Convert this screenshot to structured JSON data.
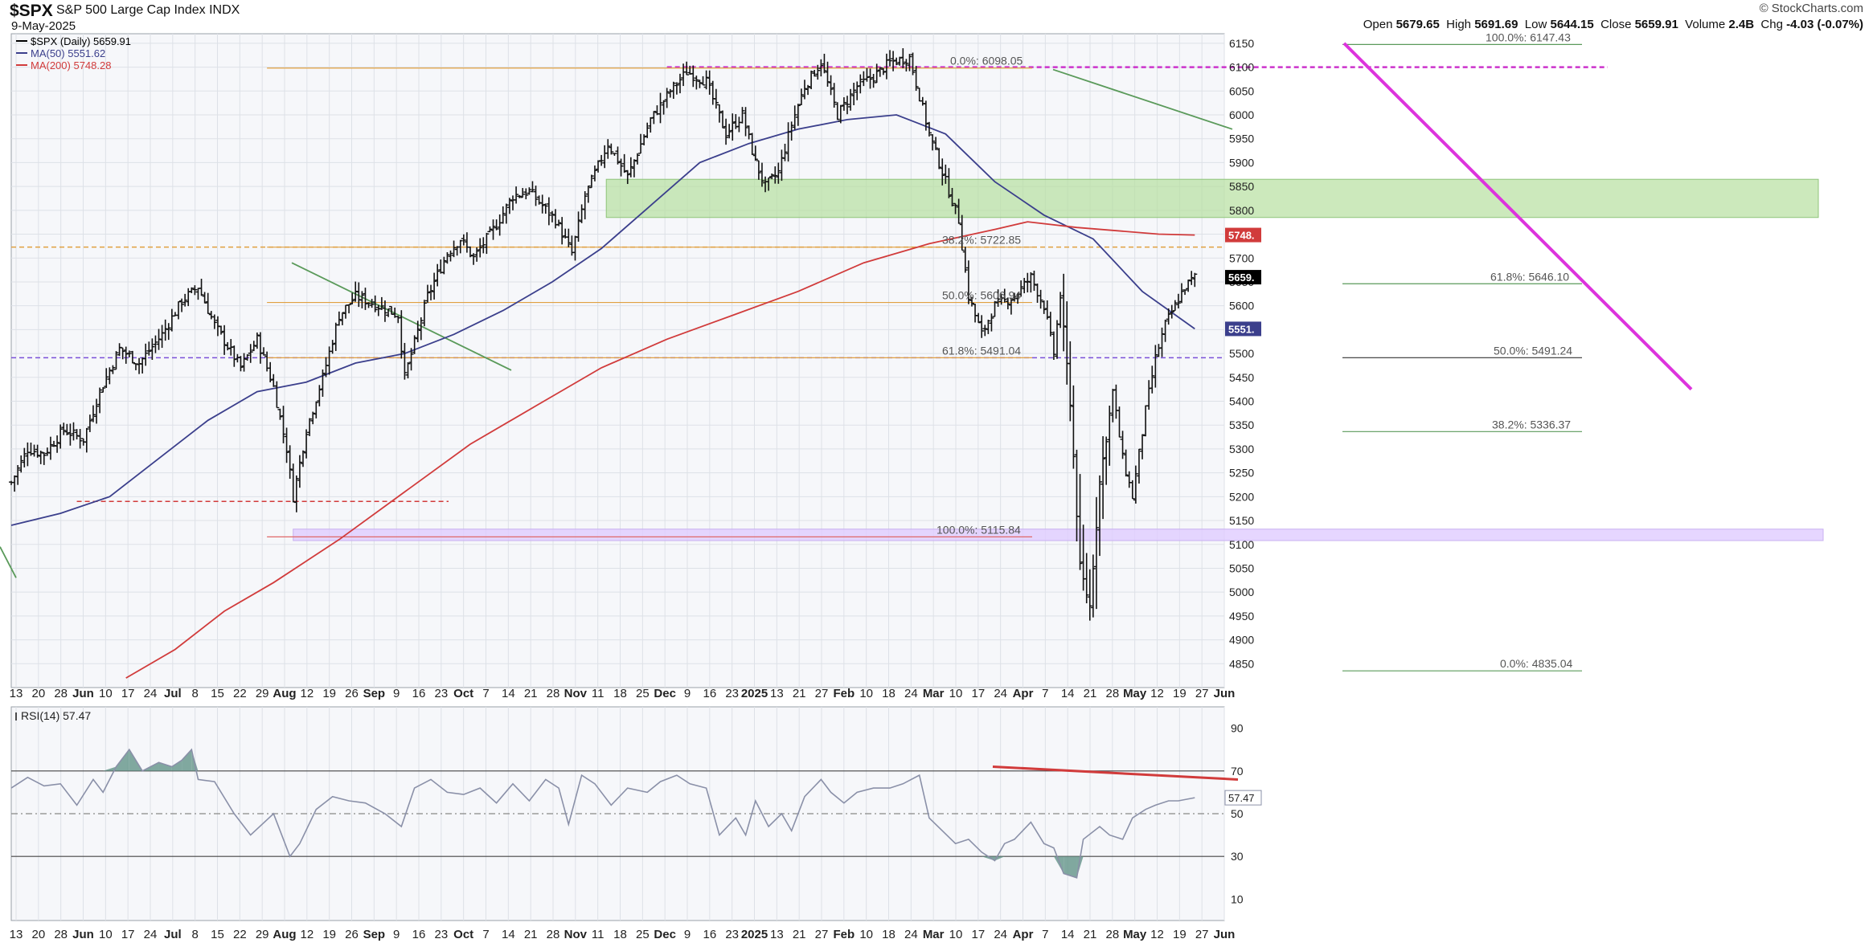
{
  "header": {
    "ticker": "$SPX",
    "name": "S&P 500 Large Cap Index",
    "exchange": "INDX",
    "date": "9-May-2025",
    "brand": "© StockCharts.com",
    "quote": {
      "open_label": "Open",
      "open": "5679.65",
      "high_label": "High",
      "high": "5691.69",
      "low_label": "Low",
      "low": "5644.15",
      "close_label": "Close",
      "close": "5659.91",
      "volume_label": "Volume",
      "volume": "2.4B",
      "chg_label": "Chg",
      "chg": "-4.03 (-0.07%)"
    }
  },
  "legend": [
    {
      "text": "$SPX (Daily) 5659.91",
      "color": "#000000"
    },
    {
      "text": "MA(50) 5551.62",
      "color": "#3b3f8c"
    },
    {
      "text": "MA(200) 5748.28",
      "color": "#d13b3b"
    }
  ],
  "price_tags": [
    {
      "text": "5748.",
      "value": 5748.28,
      "bg": "#d13b3b"
    },
    {
      "text": "5659.",
      "value": 5659.91,
      "bg": "#000000"
    },
    {
      "text": "5551.",
      "value": 5551.62,
      "bg": "#3b3f8c"
    }
  ],
  "rsi_label": "RSI(14) 57.47",
  "rsi_tag": "57.47",
  "x_ticks": [
    "13",
    "20",
    "28",
    "Jun",
    "10",
    "17",
    "24",
    "Jul",
    "8",
    "15",
    "22",
    "29",
    "Aug",
    "12",
    "19",
    "26",
    "Sep",
    "9",
    "16",
    "23",
    "Oct",
    "7",
    "14",
    "21",
    "28",
    "Nov",
    "11",
    "18",
    "25",
    "Dec",
    "9",
    "16",
    "23",
    "2025",
    "13",
    "21",
    "27",
    "Feb",
    "10",
    "18",
    "24",
    "Mar",
    "10",
    "17",
    "24",
    "Apr",
    "7",
    "14",
    "21",
    "28",
    "May",
    "12",
    "19",
    "27",
    "Jun"
  ],
  "fib_labels": [
    {
      "text": "0.0%: 6098.05",
      "value": 6098.05
    },
    {
      "text": "38.2%: 5722.85",
      "value": 5722.85
    },
    {
      "text": "50.0%: 5606.94",
      "value": 5606.94
    },
    {
      "text": "61.8%: 5491.04",
      "value": 5491.04
    },
    {
      "text": "100.0%: 5115.84",
      "value": 5115.84
    },
    {
      "text": "100.0%: 6147.43",
      "value": 6147.43
    },
    {
      "text": "61.8%: 5646.10",
      "value": 5646.1
    },
    {
      "text": "50.0%: 5491.24",
      "value": 5491.24
    },
    {
      "text": "38.2%: 5336.37",
      "value": 5336.37
    },
    {
      "text": "0.0%: 4835.04",
      "value": 4835.04
    }
  ],
  "chart_data": [
    {
      "type": "bar",
      "subtype": "ohlc",
      "title": "$SPX (Daily) 5659.91",
      "ylim": [
        4800,
        6170
      ],
      "y_ticks": [
        4850,
        4900,
        4950,
        5000,
        5050,
        5100,
        5150,
        5200,
        5250,
        5300,
        5350,
        5400,
        5450,
        5500,
        5550,
        5600,
        5650,
        5700,
        5750,
        5800,
        5850,
        5900,
        5950,
        6000,
        6050,
        6100,
        6150
      ],
      "y_axis_side": "right",
      "grid": true,
      "series": [
        {
          "name": "$SPX (Daily)",
          "close_path": [
            [
              0,
              5230
            ],
            [
              10,
              5300
            ],
            [
              20,
              5290
            ],
            [
              32,
              5340
            ],
            [
              44,
              5320
            ],
            [
              54,
              5420
            ],
            [
              66,
              5510
            ],
            [
              78,
              5480
            ],
            [
              92,
              5540
            ],
            [
              104,
              5610
            ],
            [
              114,
              5640
            ],
            [
              124,
              5560
            ],
            [
              140,
              5470
            ],
            [
              150,
              5530
            ],
            [
              160,
              5430
            ],
            [
              168,
              5300
            ],
            [
              172,
              5200
            ],
            [
              180,
              5340
            ],
            [
              190,
              5450
            ],
            [
              200,
              5580
            ],
            [
              210,
              5620
            ],
            [
              224,
              5600
            ],
            [
              236,
              5580
            ],
            [
              240,
              5450
            ],
            [
              254,
              5620
            ],
            [
              266,
              5710
            ],
            [
              274,
              5740
            ],
            [
              282,
              5700
            ],
            [
              296,
              5770
            ],
            [
              306,
              5830
            ],
            [
              316,
              5840
            ],
            [
              332,
              5780
            ],
            [
              342,
              5710
            ],
            [
              350,
              5830
            ],
            [
              364,
              5940
            ],
            [
              376,
              5870
            ],
            [
              390,
              5990
            ],
            [
              402,
              6050
            ],
            [
              412,
              6090
            ],
            [
              424,
              6070
            ],
            [
              436,
              5960
            ],
            [
              446,
              6000
            ],
            [
              454,
              5900
            ],
            [
              460,
              5850
            ],
            [
              468,
              5880
            ],
            [
              476,
              5980
            ],
            [
              484,
              6060
            ],
            [
              494,
              6110
            ],
            [
              504,
              6000
            ],
            [
              516,
              6060
            ],
            [
              526,
              6080
            ],
            [
              536,
              6110
            ],
            [
              548,
              6120
            ],
            [
              560,
              5960
            ],
            [
              570,
              5860
            ],
            [
              578,
              5780
            ],
            [
              584,
              5620
            ],
            [
              592,
              5540
            ],
            [
              600,
              5600
            ],
            [
              612,
              5620
            ],
            [
              622,
              5660
            ],
            [
              630,
              5600
            ],
            [
              636,
              5500
            ],
            [
              640,
              5620
            ],
            [
              646,
              5400
            ],
            [
              652,
              5050
            ],
            [
              658,
              4970
            ],
            [
              664,
              5230
            ],
            [
              672,
              5420
            ],
            [
              678,
              5280
            ],
            [
              684,
              5200
            ],
            [
              692,
              5380
            ],
            [
              698,
              5490
            ],
            [
              704,
              5560
            ],
            [
              710,
              5600
            ],
            [
              716,
              5640
            ],
            [
              722,
              5660
            ]
          ]
        },
        {
          "name": "MA(50)",
          "color": "#3b3f8c",
          "last": 5551.62,
          "path": [
            [
              0,
              5140
            ],
            [
              30,
              5165
            ],
            [
              60,
              5200
            ],
            [
              90,
              5280
            ],
            [
              120,
              5360
            ],
            [
              150,
              5420
            ],
            [
              180,
              5440
            ],
            [
              210,
              5480
            ],
            [
              240,
              5500
            ],
            [
              270,
              5540
            ],
            [
              300,
              5590
            ],
            [
              330,
              5650
            ],
            [
              360,
              5720
            ],
            [
              390,
              5810
            ],
            [
              420,
              5900
            ],
            [
              450,
              5940
            ],
            [
              480,
              5970
            ],
            [
              510,
              5990
            ],
            [
              540,
              6000
            ],
            [
              570,
              5960
            ],
            [
              600,
              5860
            ],
            [
              630,
              5790
            ],
            [
              660,
              5740
            ],
            [
              690,
              5630
            ],
            [
              722,
              5551.62
            ]
          ]
        },
        {
          "name": "MA(200)",
          "color": "#d13b3b",
          "last": 5748.28,
          "path": [
            [
              70,
              4820
            ],
            [
              100,
              4880
            ],
            [
              130,
              4960
            ],
            [
              160,
              5020
            ],
            [
              200,
              5110
            ],
            [
              240,
              5210
            ],
            [
              280,
              5310
            ],
            [
              320,
              5390
            ],
            [
              360,
              5470
            ],
            [
              400,
              5530
            ],
            [
              440,
              5580
            ],
            [
              480,
              5630
            ],
            [
              520,
              5690
            ],
            [
              560,
              5730
            ],
            [
              600,
              5760
            ],
            [
              620,
              5776
            ],
            [
              650,
              5764
            ],
            [
              700,
              5750
            ],
            [
              722,
              5748.28
            ]
          ]
        }
      ],
      "annotations": [
        {
          "type": "zone",
          "from": 5785,
          "to": 5865,
          "color": "green"
        },
        {
          "type": "zone",
          "from": 5108,
          "to": 5132,
          "color": "lavender"
        },
        {
          "type": "level",
          "value": 5723,
          "style": "dashed",
          "color": "orange"
        },
        {
          "type": "level",
          "value": 5491,
          "style": "dashed",
          "color": "purple"
        }
      ]
    },
    {
      "type": "line",
      "title": "RSI(14) 57.47",
      "ylim": [
        0,
        100
      ],
      "y_ticks": [
        10,
        30,
        50,
        70,
        90
      ],
      "levels": [
        30,
        50,
        70
      ],
      "series": [
        {
          "name": "RSI(14)",
          "last": 57.47,
          "path": [
            [
              0,
              62
            ],
            [
              10,
              67
            ],
            [
              20,
              63
            ],
            [
              30,
              64
            ],
            [
              40,
              54
            ],
            [
              50,
              66
            ],
            [
              56,
              60
            ],
            [
              64,
              72
            ],
            [
              72,
              80
            ],
            [
              80,
              70
            ],
            [
              90,
              74
            ],
            [
              98,
              72
            ],
            [
              104,
              75
            ],
            [
              110,
              80
            ],
            [
              114,
              66
            ],
            [
              124,
              65
            ],
            [
              136,
              50
            ],
            [
              146,
              40
            ],
            [
              160,
              50
            ],
            [
              170,
              30
            ],
            [
              176,
              36
            ],
            [
              186,
              52
            ],
            [
              196,
              58
            ],
            [
              206,
              56
            ],
            [
              216,
              55
            ],
            [
              228,
              50
            ],
            [
              238,
              44
            ],
            [
              246,
              62
            ],
            [
              256,
              66
            ],
            [
              266,
              60
            ],
            [
              276,
              59
            ],
            [
              286,
              62
            ],
            [
              296,
              55
            ],
            [
              306,
              64
            ],
            [
              316,
              56
            ],
            [
              326,
              66
            ],
            [
              334,
              62
            ],
            [
              340,
              45
            ],
            [
              348,
              68
            ],
            [
              356,
              64
            ],
            [
              366,
              54
            ],
            [
              376,
              62
            ],
            [
              388,
              60
            ],
            [
              396,
              65
            ],
            [
              406,
              68
            ],
            [
              414,
              64
            ],
            [
              424,
              62
            ],
            [
              432,
              40
            ],
            [
              442,
              48
            ],
            [
              448,
              40
            ],
            [
              454,
              56
            ],
            [
              462,
              44
            ],
            [
              470,
              50
            ],
            [
              476,
              42
            ],
            [
              484,
              58
            ],
            [
              494,
              66
            ],
            [
              500,
              60
            ],
            [
              508,
              55
            ],
            [
              516,
              60
            ],
            [
              526,
              62
            ],
            [
              536,
              62
            ],
            [
              544,
              64
            ],
            [
              554,
              68
            ],
            [
              560,
              48
            ],
            [
              568,
              42
            ],
            [
              576,
              36
            ],
            [
              584,
              38
            ],
            [
              592,
              32
            ],
            [
              600,
              28
            ],
            [
              606,
              36
            ],
            [
              612,
              38
            ],
            [
              622,
              46
            ],
            [
              630,
              36
            ],
            [
              636,
              34
            ],
            [
              642,
              22
            ],
            [
              650,
              20
            ],
            [
              654,
              38
            ],
            [
              664,
              44
            ],
            [
              670,
              40
            ],
            [
              678,
              38
            ],
            [
              684,
              48
            ],
            [
              692,
              52
            ],
            [
              698,
              54
            ],
            [
              706,
              56
            ],
            [
              712,
              56
            ],
            [
              722,
              57.47
            ]
          ]
        }
      ]
    }
  ]
}
